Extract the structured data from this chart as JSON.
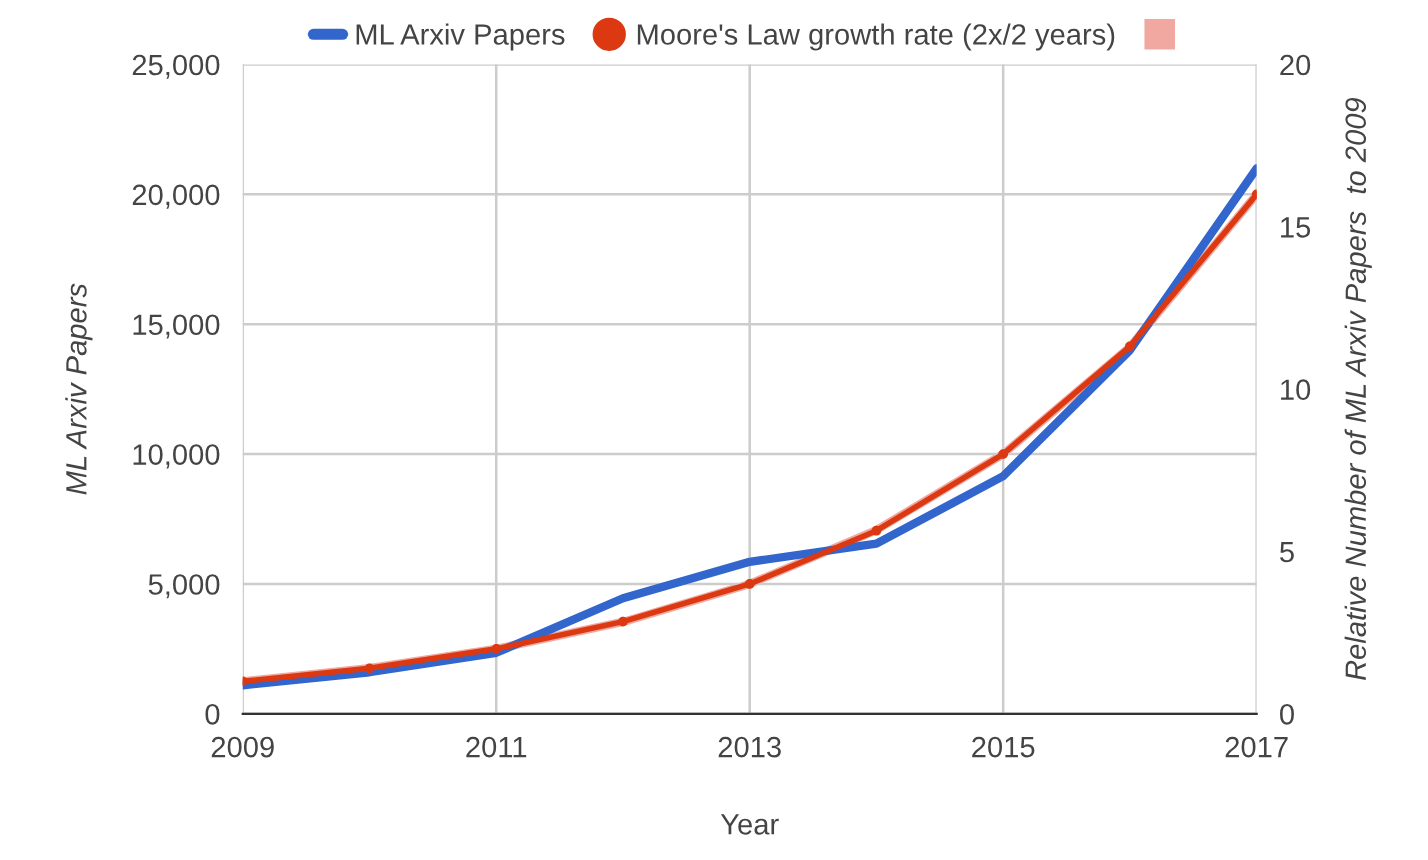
{
  "chart_data": {
    "type": "line",
    "xlabel": "Year",
    "ylabel": "ML Arxiv Papers",
    "y2label": "Relative Number of ML Arxiv Papers  to 2009",
    "x": [
      2009,
      2010,
      2011,
      2012,
      2013,
      2014,
      2015,
      2016,
      2017
    ],
    "series": [
      {
        "name": "ML Arxiv Papers",
        "color": "#3366cc",
        "marker": "none",
        "values": [
          1100,
          1600,
          2350,
          4450,
          5850,
          6550,
          9150,
          14000,
          21000
        ]
      },
      {
        "name": "Moore's Law growth rate (2x/2 years)",
        "color": "#dc3912",
        "marker": "circle",
        "values": [
          1250,
          1750,
          2500,
          3550,
          5000,
          7050,
          10000,
          14150,
          20000
        ]
      },
      {
        "color": "#f0a8a0",
        "marker": "none",
        "axis": "y2",
        "values": [
          1,
          1.41,
          2,
          2.83,
          4,
          5.66,
          8,
          11.3,
          16
        ]
      }
    ],
    "xlim": [
      2009,
      2017
    ],
    "xticks": [
      2009,
      2011,
      2013,
      2015,
      2017
    ],
    "ylim": [
      0,
      25000
    ],
    "yticks": [
      {
        "value": 0,
        "label": "0"
      },
      {
        "value": 5000,
        "label": "5,000"
      },
      {
        "value": 10000,
        "label": "10,000"
      },
      {
        "value": 15000,
        "label": "15,000"
      },
      {
        "value": 20000,
        "label": "20,000"
      },
      {
        "value": 25000,
        "label": "25,000"
      }
    ],
    "y2lim": [
      0,
      20
    ],
    "y2ticks": [
      0,
      5,
      10,
      15,
      20
    ],
    "grid": true,
    "legend": "top"
  }
}
